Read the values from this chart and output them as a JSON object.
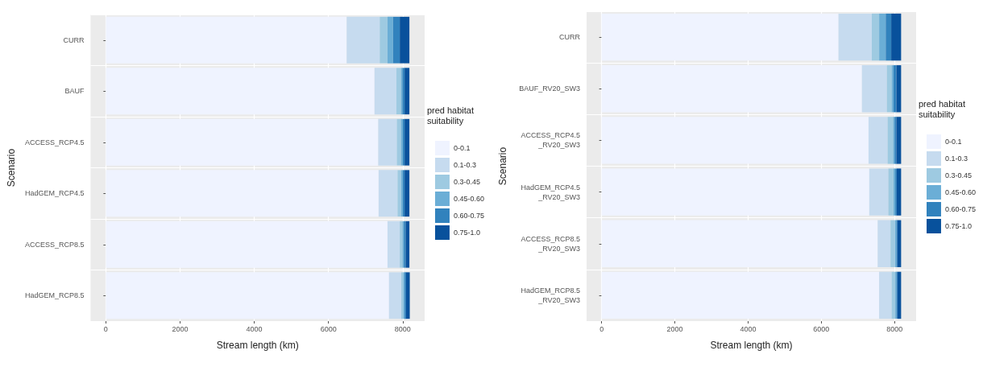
{
  "chart_data": [
    {
      "type": "bar",
      "orientation": "horizontal",
      "stacked": true,
      "xlabel": "Stream length (km)",
      "ylabel": "Scenario",
      "legend_title": "pred habitat\nsuitability",
      "legend": "right",
      "grid": true,
      "categories": [
        "CURR",
        "BAUF",
        "ACCESS_RCP4.5",
        "HadGEM_RCP4.5",
        "ACCESS_RCP8.5",
        "HadGEM_RCP8.5"
      ],
      "xlim": [
        -410,
        8590
      ],
      "xticks": [
        0,
        2000,
        4000,
        6000,
        8000
      ],
      "series": [
        {
          "name": "0-0.1",
          "color": "#eff3ff",
          "values": [
            6490,
            7240,
            7340,
            7350,
            7590,
            7630
          ]
        },
        {
          "name": "0.1-0.3",
          "color": "#c6dbef",
          "values": [
            890,
            590,
            500,
            510,
            330,
            330
          ]
        },
        {
          "name": "0.3-0.45",
          "color": "#9ecae1",
          "values": [
            210,
            120,
            110,
            100,
            70,
            50
          ]
        },
        {
          "name": "0.45-0.60",
          "color": "#6baed6",
          "values": [
            150,
            40,
            50,
            40,
            40,
            40
          ]
        },
        {
          "name": "0.60-0.75",
          "color": "#3182bd",
          "values": [
            180,
            60,
            50,
            50,
            50,
            40
          ]
        },
        {
          "name": "0.75-1.0",
          "color": "#08519c",
          "values": [
            260,
            130,
            130,
            130,
            100,
            100
          ]
        }
      ]
    },
    {
      "type": "bar",
      "orientation": "horizontal",
      "stacked": true,
      "xlabel": "Stream length (km)",
      "ylabel": "Scenario",
      "legend_title": "pred habitat\nsuitability",
      "legend": "right",
      "grid": true,
      "categories": [
        "CURR",
        "BAUF_RV20_SW3",
        "ACCESS_RCP4.5\n_RV20_SW3",
        "HadGEM_RCP4.5\n_RV20_SW3",
        "ACCESS_RCP8.5\n_RV20_SW3",
        "HadGEM_RCP8.5\n_RV20_SW3"
      ],
      "xlim": [
        -410,
        8590
      ],
      "xticks": [
        0,
        2000,
        4000,
        6000,
        8000
      ],
      "series": [
        {
          "name": "0-0.1",
          "color": "#eff3ff",
          "values": [
            6470,
            7110,
            7290,
            7310,
            7540,
            7580
          ]
        },
        {
          "name": "0.1-0.3",
          "color": "#c6dbef",
          "values": [
            910,
            680,
            520,
            520,
            350,
            340
          ]
        },
        {
          "name": "0.3-0.45",
          "color": "#9ecae1",
          "values": [
            200,
            130,
            150,
            140,
            120,
            100
          ]
        },
        {
          "name": "0.45-0.60",
          "color": "#6baed6",
          "values": [
            180,
            50,
            40,
            50,
            40,
            30
          ]
        },
        {
          "name": "0.60-0.75",
          "color": "#3182bd",
          "values": [
            150,
            80,
            50,
            40,
            30,
            30
          ]
        },
        {
          "name": "0.75-1.0",
          "color": "#08519c",
          "values": [
            270,
            130,
            130,
            120,
            100,
            100
          ]
        }
      ]
    }
  ]
}
